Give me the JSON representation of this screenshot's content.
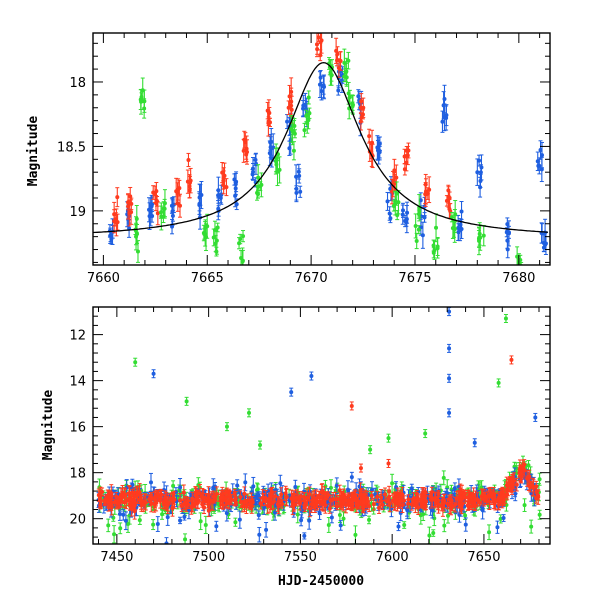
{
  "colors": {
    "green": "#33dd33",
    "red": "#ff3b1f",
    "blue": "#1f5fe0",
    "fit": "#000000"
  },
  "chart_data": [
    {
      "type": "scatter",
      "title": "",
      "xlabel": "",
      "ylabel": "Magnitude",
      "xlim": [
        7659.5,
        7681.5
      ],
      "ylim": [
        19.42,
        17.62
      ],
      "y_inverted": true,
      "xticks": [
        7660,
        7665,
        7670,
        7675,
        7680
      ],
      "yticks": [
        18,
        18.5,
        19
      ],
      "series": [
        {
          "color": "blue",
          "points": [
            [
              7660.4,
              19.12
            ],
            [
              7661.2,
              19.05
            ],
            [
              7662.3,
              19.0
            ],
            [
              7663.4,
              19.0
            ],
            [
              7664.6,
              18.95
            ],
            [
              7665.6,
              18.9
            ],
            [
              7666.3,
              18.8
            ],
            [
              7667.3,
              18.7
            ],
            [
              7668.1,
              18.55
            ],
            [
              7668.9,
              18.4
            ],
            [
              7669.4,
              18.8
            ],
            [
              7669.7,
              18.2
            ],
            [
              7670.5,
              17.98
            ],
            [
              7671.4,
              17.95
            ],
            [
              7672.3,
              18.2
            ],
            [
              7673.3,
              18.55
            ],
            [
              7673.8,
              18.95
            ],
            [
              7674.5,
              19.05
            ],
            [
              7675.4,
              19.05
            ],
            [
              7676.4,
              18.25
            ],
            [
              7677.2,
              19.1
            ],
            [
              7678.1,
              18.75
            ],
            [
              7679.5,
              19.15
            ],
            [
              7681.0,
              18.62
            ],
            [
              7681.2,
              19.25
            ]
          ]
        },
        {
          "color": "red",
          "points": [
            [
              7660.6,
              19.05
            ],
            [
              7661.3,
              19.0
            ],
            [
              7662.5,
              18.9
            ],
            [
              7663.6,
              18.88
            ],
            [
              7664.1,
              18.75
            ],
            [
              7665.8,
              18.75
            ],
            [
              7666.8,
              18.55
            ],
            [
              7668.0,
              18.3
            ],
            [
              7669.0,
              18.15
            ],
            [
              7670.4,
              17.75
            ],
            [
              7671.3,
              17.8
            ],
            [
              7672.4,
              18.25
            ],
            [
              7672.9,
              18.5
            ],
            [
              7674.0,
              18.75
            ],
            [
              7674.6,
              18.6
            ],
            [
              7675.6,
              18.85
            ],
            [
              7676.6,
              18.95
            ]
          ]
        },
        {
          "color": "green",
          "points": [
            [
              7661.9,
              18.1
            ],
            [
              7661.6,
              19.2
            ],
            [
              7662.9,
              19.0
            ],
            [
              7664.9,
              19.15
            ],
            [
              7665.4,
              19.2
            ],
            [
              7666.6,
              19.3
            ],
            [
              7667.5,
              18.8
            ],
            [
              7668.4,
              18.6
            ],
            [
              7669.1,
              18.35
            ],
            [
              7669.8,
              18.25
            ],
            [
              7670.9,
              17.9
            ],
            [
              7671.7,
              17.85
            ],
            [
              7671.9,
              18.15
            ],
            [
              7674.1,
              18.95
            ],
            [
              7675.1,
              19.05
            ],
            [
              7676.0,
              19.2
            ],
            [
              7676.9,
              19.1
            ],
            [
              7678.2,
              19.25
            ],
            [
              7680.0,
              19.4
            ]
          ]
        }
      ],
      "fit": {
        "peak_x": 7670.6,
        "peak_y": 17.85,
        "base_y": 19.22,
        "width": 2.2
      }
    },
    {
      "type": "scatter",
      "title": "",
      "xlabel": "HJD-2450000",
      "ylabel": "Magnitude",
      "xlim": [
        7437,
        7686
      ],
      "ylim": [
        21.1,
        10.8
      ],
      "y_inverted": true,
      "xticks": [
        7450,
        7500,
        7550,
        7600,
        7650
      ],
      "yticks": [
        12,
        14,
        16,
        18,
        20
      ],
      "outliers": [
        {
          "color": "green",
          "points": [
            [
              7460,
              13.2
            ],
            [
              7488,
              14.9
            ],
            [
              7510,
              16.0
            ],
            [
              7522,
              15.4
            ],
            [
              7528,
              16.8
            ],
            [
              7588,
              17.0
            ],
            [
              7598,
              16.5
            ],
            [
              7618,
              16.3
            ],
            [
              7658,
              14.1
            ],
            [
              7662,
              11.3
            ]
          ]
        },
        {
          "color": "blue",
          "points": [
            [
              7470,
              13.7
            ],
            [
              7545,
              14.5
            ],
            [
              7556,
              13.8
            ],
            [
              7631,
              11.0
            ],
            [
              7631,
              12.6
            ],
            [
              7631,
              13.9
            ],
            [
              7631,
              15.4
            ],
            [
              7645,
              16.7
            ],
            [
              7678,
              15.6
            ]
          ]
        },
        {
          "color": "red",
          "points": [
            [
              7578,
              15.1
            ],
            [
              7583,
              17.8
            ],
            [
              7598,
              17.6
            ],
            [
              7665,
              13.1
            ]
          ]
        }
      ],
      "peak": {
        "start_x": 7652,
        "peak_x": 7671,
        "end_x": 7681,
        "base_y": 19.2,
        "peak_y": 17.8
      },
      "band": {
        "median_mag": 19.3,
        "spread": 0.9
      }
    }
  ]
}
